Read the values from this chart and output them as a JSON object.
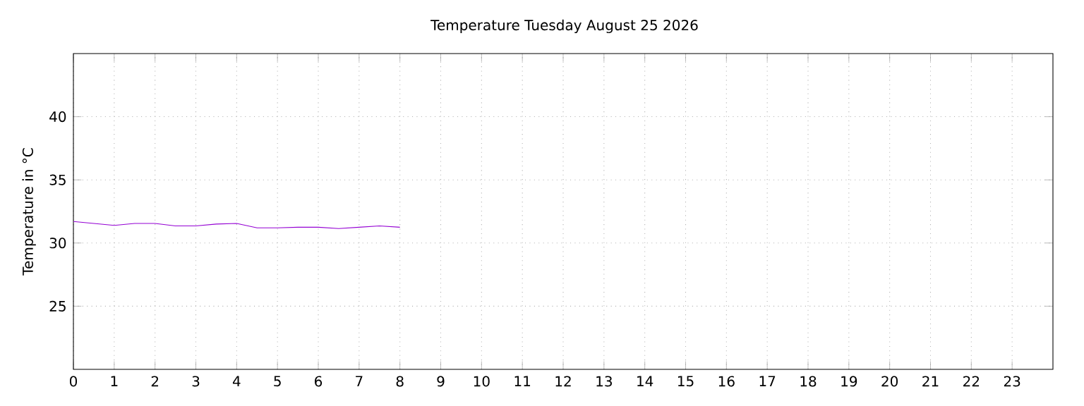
{
  "chart_data": {
    "type": "line",
    "title": "Temperature Tuesday August 25 2026",
    "ylabel": "Temperature in °C",
    "x": [
      0,
      1,
      1.5,
      2,
      2.5,
      3,
      3.5,
      4,
      4.5,
      5,
      5.5,
      6,
      6.5,
      7,
      7.5,
      8
    ],
    "series": [
      {
        "color": "#9400d3",
        "values": [
          31.7,
          31.4,
          31.55,
          31.55,
          31.35,
          31.35,
          31.5,
          31.55,
          31.2,
          31.2,
          31.25,
          31.25,
          31.15,
          31.25,
          31.35,
          31.25
        ]
      }
    ],
    "xlim": [
      0,
      24
    ],
    "ylim": [
      20,
      45
    ],
    "xticks": [
      0,
      1,
      2,
      3,
      4,
      5,
      6,
      7,
      8,
      9,
      10,
      11,
      12,
      13,
      14,
      15,
      16,
      17,
      18,
      19,
      20,
      21,
      22,
      23
    ],
    "yticks": [
      25,
      30,
      35,
      40
    ],
    "grid": true,
    "marker": "none",
    "line_style": "solid"
  }
}
